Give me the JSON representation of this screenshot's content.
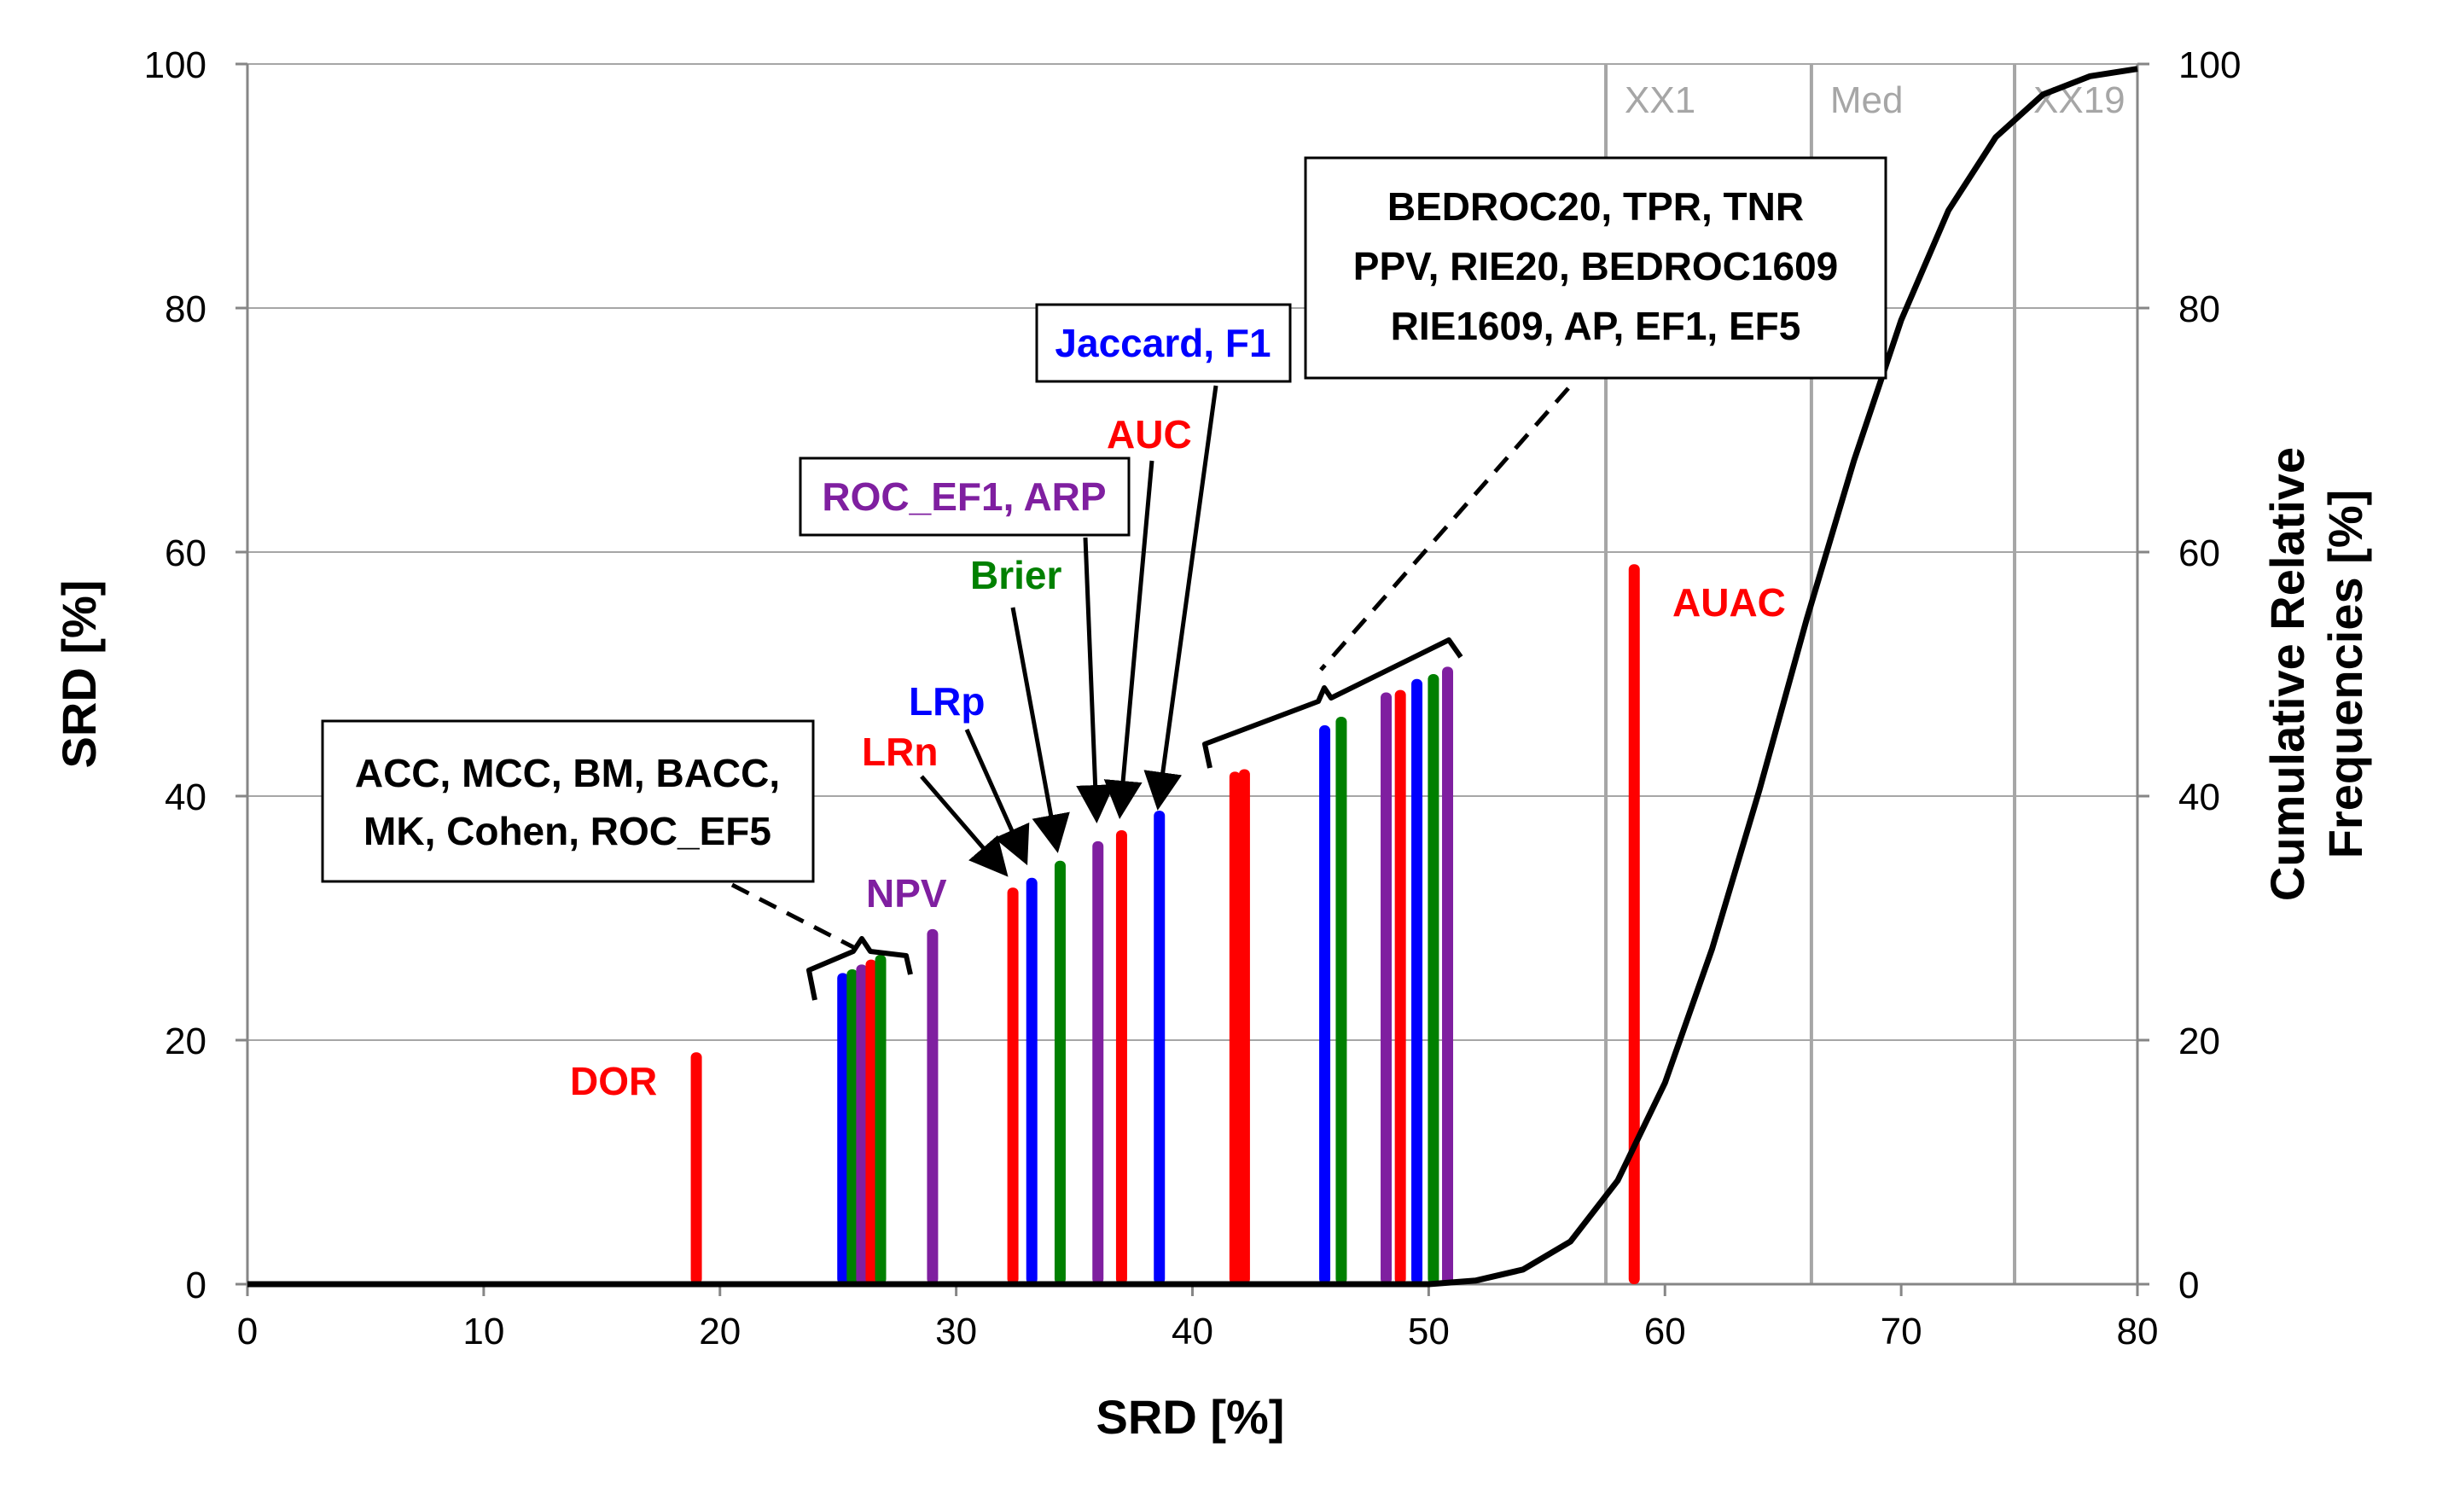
{
  "chart_data": {
    "type": "bar",
    "title": "",
    "xlabel": "SRD [%]",
    "ylabel": "SRD [%]",
    "y2label_line1": "Cumulative Relative",
    "y2label_line2": "Frequencies  [%]",
    "xlim": [
      0,
      80
    ],
    "ylim": [
      0,
      100
    ],
    "y2lim": [
      0,
      100
    ],
    "grid": true,
    "xticks": [
      "0",
      "10",
      "20",
      "30",
      "40",
      "50",
      "60",
      "70",
      "80"
    ],
    "yticks": [
      "0",
      "20",
      "40",
      "60",
      "80",
      "100"
    ],
    "y2ticks": [
      "0",
      "20",
      "40",
      "60",
      "80",
      "100"
    ],
    "reference_lines": [
      {
        "label": "XX1",
        "x": 57.5
      },
      {
        "label": "Med",
        "x": 66.2
      },
      {
        "label": "XX19",
        "x": 74.8
      }
    ],
    "bars": [
      {
        "x": 19.0,
        "value": 19.0,
        "color": "#ff0000"
      },
      {
        "x": 25.2,
        "value": 25.5,
        "color": "#0000ff"
      },
      {
        "x": 25.6,
        "value": 25.8,
        "color": "#008000"
      },
      {
        "x": 26.0,
        "value": 26.2,
        "color": "#7f1fa0"
      },
      {
        "x": 26.4,
        "value": 26.6,
        "color": "#ff0000"
      },
      {
        "x": 26.8,
        "value": 27.0,
        "color": "#008000"
      },
      {
        "x": 29.0,
        "value": 29.1,
        "color": "#7f1fa0"
      },
      {
        "x": 32.4,
        "value": 32.5,
        "color": "#ff0000"
      },
      {
        "x": 33.2,
        "value": 33.3,
        "color": "#0000ff"
      },
      {
        "x": 34.4,
        "value": 34.7,
        "color": "#008000"
      },
      {
        "x": 36.0,
        "value": 36.3,
        "color": "#7f1fa0"
      },
      {
        "x": 37.0,
        "value": 37.2,
        "color": "#ff0000"
      },
      {
        "x": 38.6,
        "value": 38.8,
        "color": "#0000ff"
      },
      {
        "x": 41.8,
        "value": 42.0,
        "color": "#ff0000"
      },
      {
        "x": 42.2,
        "value": 42.2,
        "color": "#ff0000"
      },
      {
        "x": 45.6,
        "value": 45.8,
        "color": "#0000ff"
      },
      {
        "x": 46.3,
        "value": 46.5,
        "color": "#008000"
      },
      {
        "x": 48.2,
        "value": 48.5,
        "color": "#7f1fa0"
      },
      {
        "x": 48.8,
        "value": 48.7,
        "color": "#ff0000"
      },
      {
        "x": 49.5,
        "value": 49.6,
        "color": "#0000ff"
      },
      {
        "x": 50.2,
        "value": 50.0,
        "color": "#008000"
      },
      {
        "x": 50.8,
        "value": 50.6,
        "color": "#7f1fa0"
      },
      {
        "x": 58.7,
        "value": 59.0,
        "color": "#ff0000"
      }
    ],
    "cumulative_curve": {
      "x": [
        0,
        40,
        50,
        52,
        54,
        56,
        58,
        60,
        62,
        64,
        66,
        68,
        70,
        72,
        74,
        76,
        78,
        80
      ],
      "y": [
        0,
        0,
        0,
        0.3,
        1.2,
        3.5,
        8.5,
        16.5,
        27.5,
        40.5,
        54.5,
        67.5,
        79,
        88,
        94,
        97.5,
        99,
        99.6
      ]
    },
    "annotations": [
      {
        "text": "DOR",
        "color": "#ff0000",
        "boxed": false
      },
      {
        "text": "NPV",
        "color": "#7f1fa0",
        "boxed": false
      },
      {
        "text": "LRn",
        "color": "#ff0000",
        "boxed": false
      },
      {
        "text": "LRp",
        "color": "#0000ff",
        "boxed": false
      },
      {
        "text": "Brier",
        "color": "#008000",
        "boxed": false
      },
      {
        "text": "AUC",
        "color": "#ff0000",
        "boxed": false
      },
      {
        "text": "AUAC",
        "color": "#ff0000",
        "boxed": false
      },
      {
        "text": "ROC_EF1, ARP",
        "color": "#7f1fa0",
        "boxed": true
      },
      {
        "text": "Jaccard, F1",
        "color": "#0000ff",
        "boxed": true
      },
      {
        "lines": [
          "ACC, MCC, BM, BACC,",
          "MK, Cohen, ROC_EF5"
        ],
        "color": "#000000",
        "boxed": true
      },
      {
        "lines": [
          "BEDROC20, TPR, TNR",
          "PPV, RIE20, BEDROC1609",
          "RIE1609, AP, EF1, EF5"
        ],
        "color": "#000000",
        "boxed": true
      }
    ]
  }
}
